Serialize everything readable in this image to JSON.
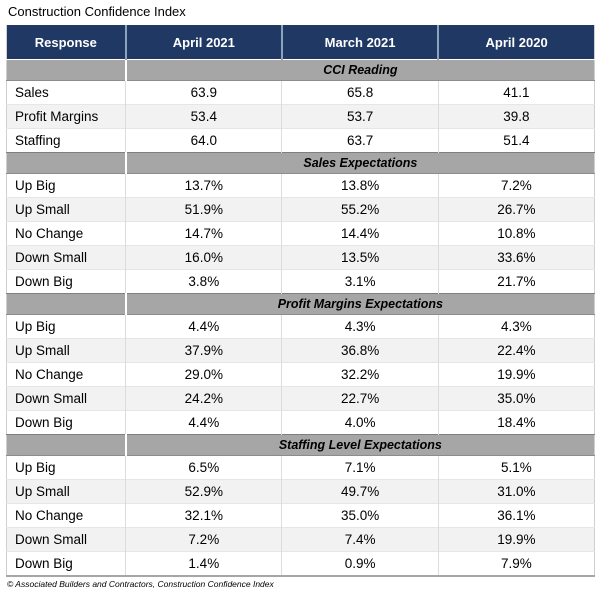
{
  "chart_data": {
    "type": "table",
    "title": "Construction Confidence Index",
    "source_note": "© Associated Builders and Contractors, Construction Confidence Index",
    "columns": [
      "Response",
      "April 2021",
      "March 2021",
      "April 2020"
    ],
    "sections": [
      {
        "header": "CCI Reading",
        "rows": [
          [
            "Sales",
            "63.9",
            "65.8",
            "41.1"
          ],
          [
            "Profit Margins",
            "53.4",
            "53.7",
            "39.8"
          ],
          [
            "Staffing",
            "64.0",
            "63.7",
            "51.4"
          ]
        ]
      },
      {
        "header": "Sales Expectations",
        "rows": [
          [
            "Up Big",
            "13.7%",
            "13.8%",
            "7.2%"
          ],
          [
            "Up Small",
            "51.9%",
            "55.2%",
            "26.7%"
          ],
          [
            "No Change",
            "14.7%",
            "14.4%",
            "10.8%"
          ],
          [
            "Down Small",
            "16.0%",
            "13.5%",
            "33.6%"
          ],
          [
            "Down Big",
            "3.8%",
            "3.1%",
            "21.7%"
          ]
        ]
      },
      {
        "header": "Profit Margins Expectations",
        "rows": [
          [
            "Up Big",
            "4.4%",
            "4.3%",
            "4.3%"
          ],
          [
            "Up Small",
            "37.9%",
            "36.8%",
            "22.4%"
          ],
          [
            "No Change",
            "29.0%",
            "32.2%",
            "19.9%"
          ],
          [
            "Down Small",
            "24.2%",
            "22.7%",
            "35.0%"
          ],
          [
            "Down Big",
            "4.4%",
            "4.0%",
            "18.4%"
          ]
        ]
      },
      {
        "header": "Staffing Level Expectations",
        "rows": [
          [
            "Up Big",
            "6.5%",
            "7.1%",
            "5.1%"
          ],
          [
            "Up Small",
            "52.9%",
            "49.7%",
            "31.0%"
          ],
          [
            "No Change",
            "32.1%",
            "35.0%",
            "36.1%"
          ],
          [
            "Down Small",
            "7.2%",
            "7.4%",
            "19.9%"
          ],
          [
            "Down Big",
            "1.4%",
            "0.9%",
            "7.9%"
          ]
        ]
      }
    ],
    "layout": {
      "legend": "none",
      "grid": "table-borders"
    }
  },
  "colors": {
    "header_bg": "#1F3864",
    "header_text": "#FFFFFF",
    "section_bg": "#A6A6A6",
    "stripe_bg": "#F2F2F2",
    "row_bg": "#FFFFFF"
  }
}
